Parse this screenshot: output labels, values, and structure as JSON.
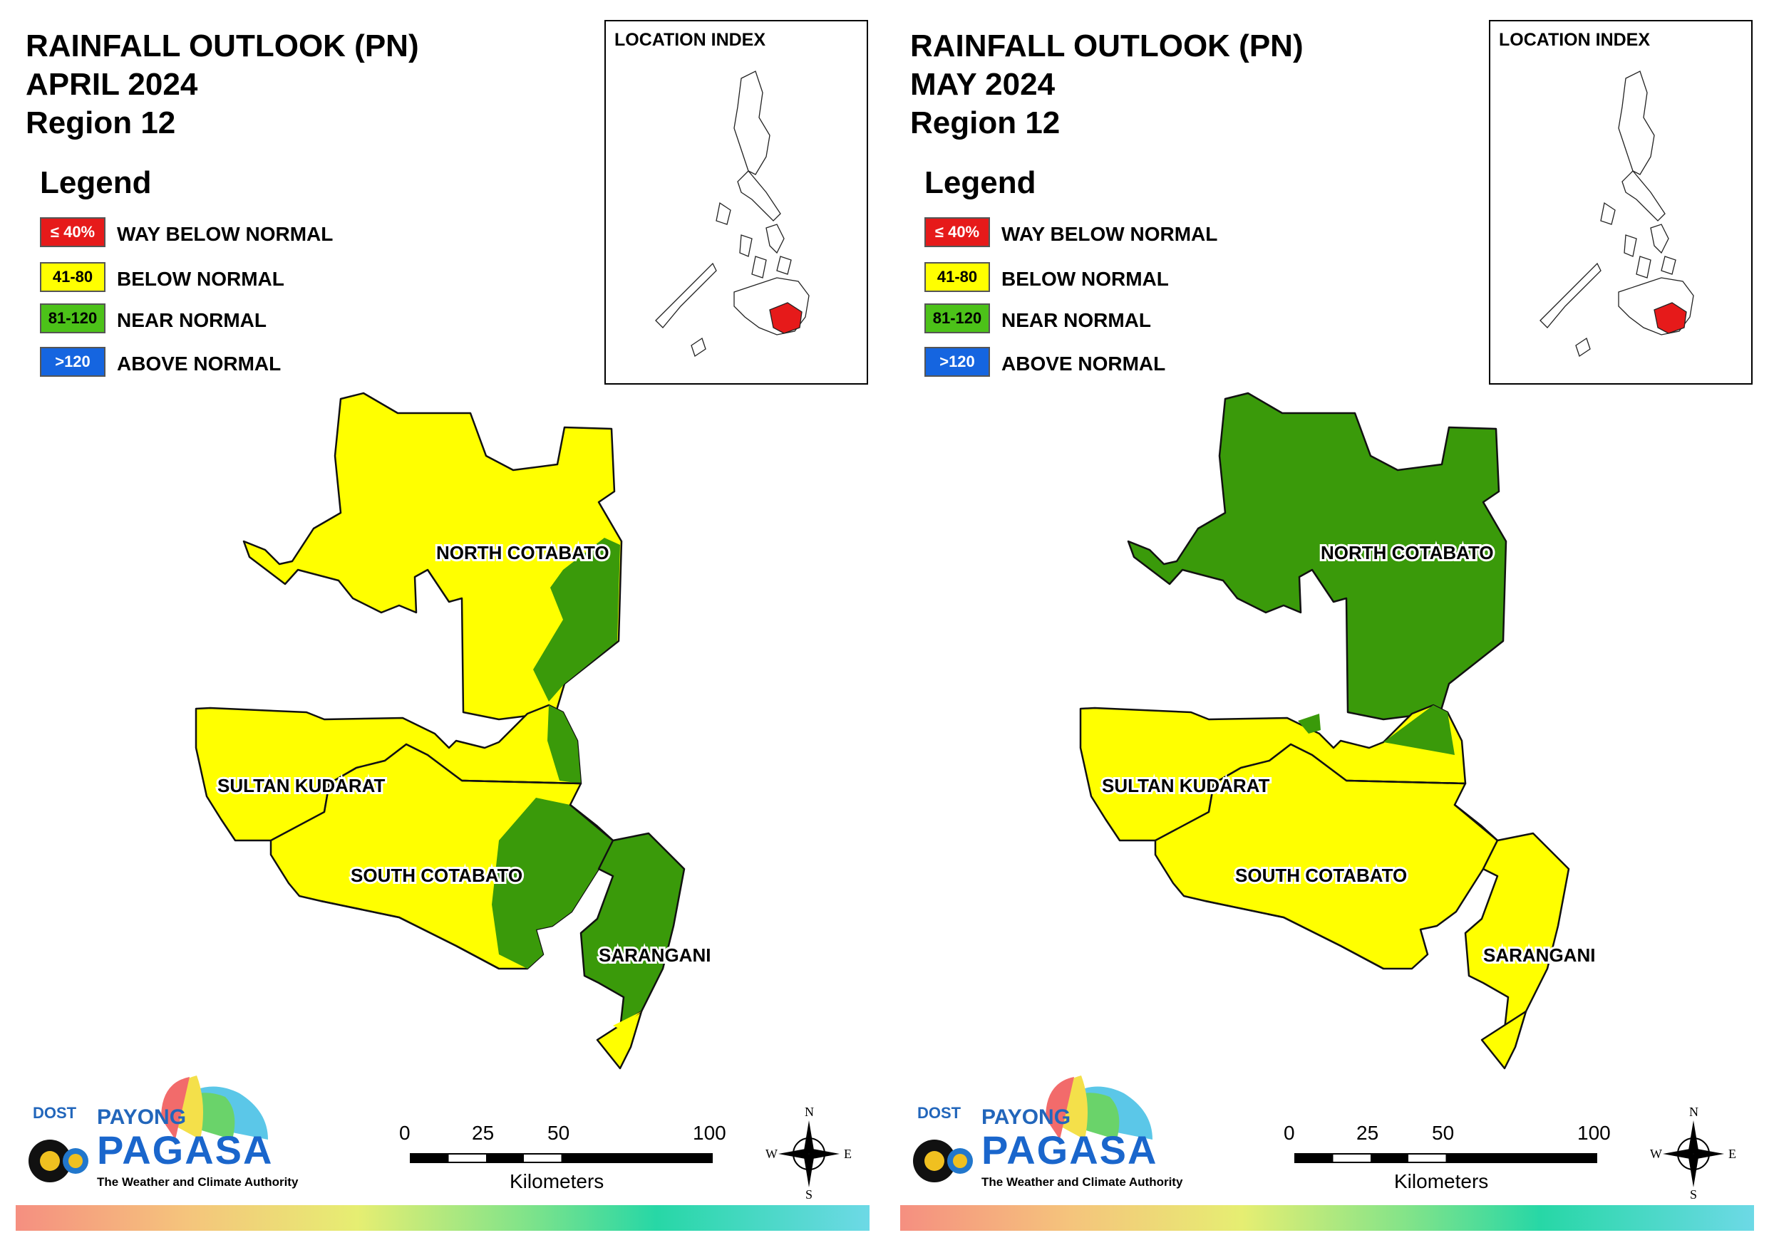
{
  "panels": [
    {
      "title_line1": "RAINFALL OUTLOOK (PN)",
      "title_line2": "APRIL 2024",
      "title_line3": "Region 12",
      "map_variant": "april"
    },
    {
      "title_line1": "RAINFALL OUTLOOK (PN)",
      "title_line2": "MAY 2024",
      "title_line3": "Region 12",
      "map_variant": "may"
    }
  ],
  "legend": {
    "title": "Legend",
    "items": [
      {
        "range": "≤ 40%",
        "label": "WAY BELOW NORMAL",
        "color": "#e61a1a",
        "text_color": "#ffffff"
      },
      {
        "range": "41-80",
        "label": "BELOW NORMAL",
        "color": "#ffff00",
        "text_color": "#000000"
      },
      {
        "range": "81-120",
        "label": "NEAR NORMAL",
        "color": "#4cc219",
        "text_color": "#000000"
      },
      {
        "range": ">120",
        "label": "ABOVE NORMAL",
        "color": "#1565e0",
        "text_color": "#ffffff"
      }
    ]
  },
  "location_index": {
    "title": "LOCATION INDEX",
    "highlight_color": "#e61a1a"
  },
  "provinces": {
    "north_cotabato": "NORTH COTABATO",
    "sultan_kudarat": "SULTAN KUDARAT",
    "south_cotabato": "SOUTH COTABATO",
    "sarangani": "SARANGANI"
  },
  "region_colors": {
    "below_normal": "#ffff00",
    "near_normal": "#3a9a0a"
  },
  "scale": {
    "ticks": [
      "0",
      "25",
      "50",
      "100"
    ],
    "unit": "Kilometers"
  },
  "compass": {
    "n": "N",
    "s": "S",
    "e": "E",
    "w": "W"
  },
  "logo": {
    "agency": "DOST",
    "brand_top": "PAYONG",
    "brand_main": "PAGASA",
    "tagline": "The Weather and Climate Authority"
  }
}
